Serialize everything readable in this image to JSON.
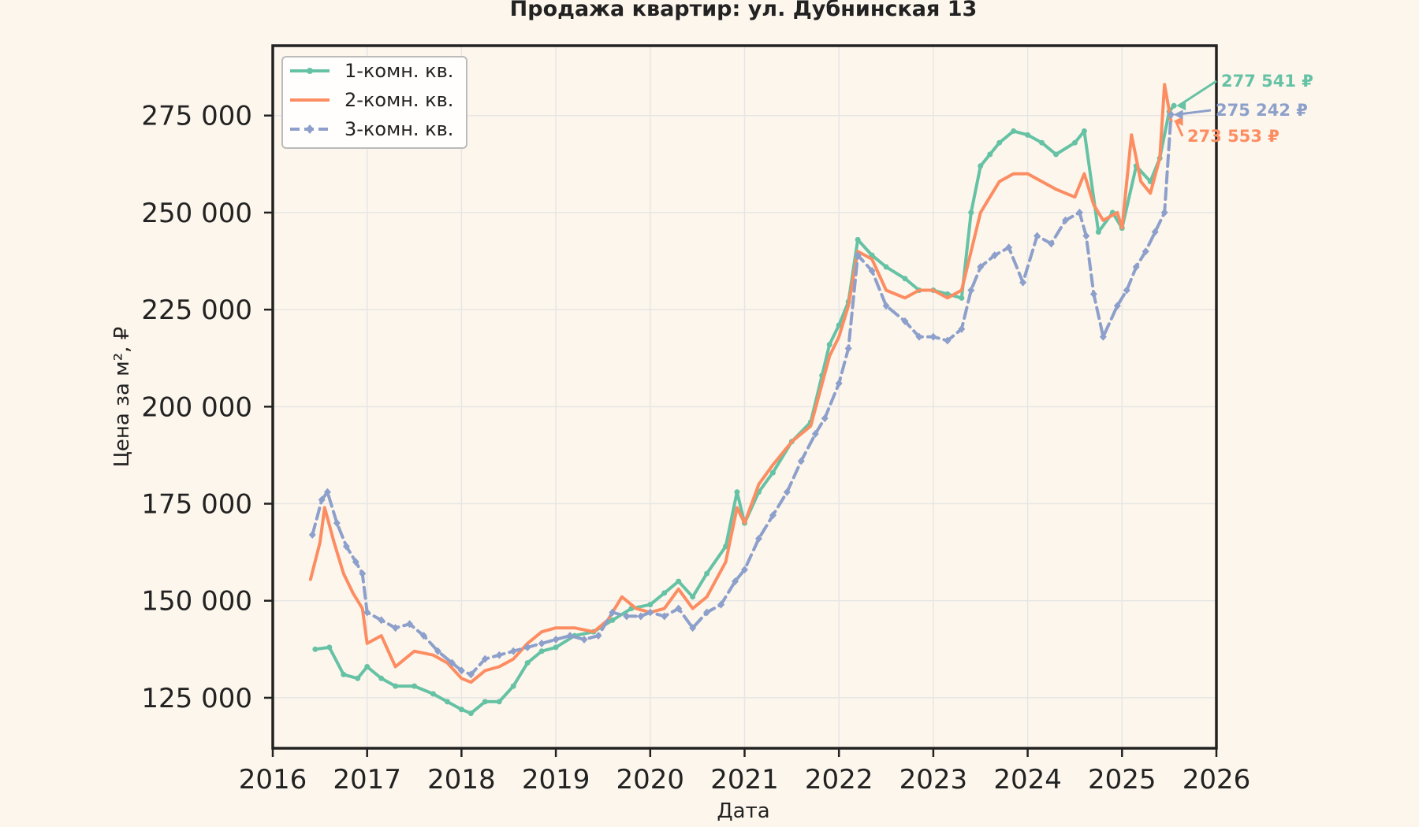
{
  "chart_data": {
    "type": "line",
    "title": "Продажа квартир: ул. Дубнинская 13",
    "xlabel": "Дата",
    "ylabel": "Цена за м², ₽",
    "xlim": [
      2016.0,
      2026.0
    ],
    "ylim": [
      112000,
      293000
    ],
    "x_ticks": [
      2016,
      2017,
      2018,
      2019,
      2020,
      2021,
      2022,
      2023,
      2024,
      2025,
      2026
    ],
    "x_tick_labels": [
      "2016",
      "2017",
      "2018",
      "2019",
      "2020",
      "2021",
      "2022",
      "2023",
      "2024",
      "2025",
      "2026"
    ],
    "y_ticks": [
      125000,
      150000,
      175000,
      200000,
      225000,
      250000,
      275000
    ],
    "y_tick_labels": [
      "125 000",
      "150 000",
      "175 000",
      "200 000",
      "225 000",
      "250 000",
      "275 000"
    ],
    "grid": true,
    "legend_position": "top-left",
    "series": [
      {
        "name": "1-комн. кв.",
        "color": "#66c2a5",
        "style": "solid",
        "marker": "circle",
        "end_label": "277 541 ₽",
        "x": [
          2016.45,
          2016.6,
          2016.75,
          2016.9,
          2017.0,
          2017.15,
          2017.3,
          2017.5,
          2017.7,
          2017.85,
          2018.0,
          2018.1,
          2018.25,
          2018.4,
          2018.55,
          2018.7,
          2018.85,
          2019.0,
          2019.2,
          2019.4,
          2019.6,
          2019.8,
          2020.0,
          2020.15,
          2020.3,
          2020.45,
          2020.6,
          2020.8,
          2020.92,
          2021.0,
          2021.15,
          2021.3,
          2021.5,
          2021.7,
          2021.82,
          2021.9,
          2022.0,
          2022.1,
          2022.2,
          2022.35,
          2022.5,
          2022.7,
          2022.85,
          2023.0,
          2023.15,
          2023.3,
          2023.4,
          2023.5,
          2023.6,
          2023.7,
          2023.85,
          2024.0,
          2024.15,
          2024.3,
          2024.5,
          2024.6,
          2024.75,
          2024.9,
          2025.0,
          2025.15,
          2025.3,
          2025.4,
          2025.5,
          2025.55
        ],
        "y": [
          137500,
          138000,
          131000,
          130000,
          133000,
          130000,
          128000,
          128000,
          126000,
          124000,
          122000,
          121000,
          124000,
          124000,
          128000,
          134000,
          137000,
          138000,
          141000,
          142000,
          145000,
          148000,
          149000,
          152000,
          155000,
          151000,
          157000,
          164000,
          178000,
          170000,
          178000,
          183000,
          191000,
          196000,
          208000,
          216000,
          221000,
          227000,
          243000,
          239000,
          236000,
          233000,
          230000,
          230000,
          229000,
          228000,
          250000,
          262000,
          265000,
          268000,
          271000,
          270000,
          268000,
          265000,
          268000,
          271000,
          245000,
          250000,
          246000,
          262000,
          258000,
          264000,
          276000,
          277541
        ]
      },
      {
        "name": "2-комн. кв.",
        "color": "#fc8d62",
        "style": "solid",
        "marker": "none",
        "end_label": "273 553 ₽",
        "x": [
          2016.4,
          2016.5,
          2016.55,
          2016.65,
          2016.75,
          2016.85,
          2016.95,
          2017.0,
          2017.15,
          2017.3,
          2017.5,
          2017.7,
          2017.85,
          2018.0,
          2018.1,
          2018.25,
          2018.4,
          2018.55,
          2018.7,
          2018.85,
          2019.0,
          2019.2,
          2019.4,
          2019.55,
          2019.7,
          2019.85,
          2020.0,
          2020.15,
          2020.3,
          2020.45,
          2020.6,
          2020.8,
          2020.92,
          2021.0,
          2021.15,
          2021.3,
          2021.5,
          2021.7,
          2021.8,
          2021.9,
          2022.0,
          2022.1,
          2022.2,
          2022.35,
          2022.5,
          2022.7,
          2022.85,
          2023.0,
          2023.15,
          2023.3,
          2023.4,
          2023.5,
          2023.6,
          2023.7,
          2023.85,
          2024.0,
          2024.15,
          2024.3,
          2024.5,
          2024.6,
          2024.7,
          2024.8,
          2024.95,
          2025.0,
          2025.1,
          2025.2,
          2025.3,
          2025.4,
          2025.45,
          2025.52
        ],
        "y": [
          155500,
          165000,
          174000,
          165000,
          157000,
          152000,
          148000,
          139000,
          141000,
          133000,
          137000,
          136000,
          134000,
          130000,
          129000,
          132000,
          133000,
          135000,
          139000,
          142000,
          143000,
          143000,
          142000,
          145000,
          151000,
          148000,
          147000,
          148000,
          153000,
          148000,
          151000,
          160000,
          174000,
          170000,
          180000,
          185000,
          191000,
          195000,
          204000,
          213000,
          218000,
          226000,
          240000,
          238000,
          230000,
          228000,
          230000,
          230000,
          228000,
          230000,
          240000,
          250000,
          254000,
          258000,
          260000,
          260000,
          258000,
          256000,
          254000,
          260000,
          252000,
          248000,
          250000,
          246000,
          270000,
          258000,
          255000,
          264000,
          283000,
          273553
        ]
      },
      {
        "name": "3-комн. кв.",
        "color": "#8da0cb",
        "style": "dashed",
        "marker": "diamond",
        "end_label": "275 242 ₽",
        "x": [
          2016.42,
          2016.52,
          2016.58,
          2016.68,
          2016.78,
          2016.88,
          2016.95,
          2017.0,
          2017.15,
          2017.3,
          2017.45,
          2017.6,
          2017.75,
          2017.9,
          2018.0,
          2018.1,
          2018.25,
          2018.4,
          2018.55,
          2018.7,
          2018.85,
          2019.0,
          2019.15,
          2019.3,
          2019.45,
          2019.6,
          2019.75,
          2019.9,
          2020.0,
          2020.15,
          2020.3,
          2020.45,
          2020.6,
          2020.75,
          2020.9,
          2021.0,
          2021.15,
          2021.3,
          2021.45,
          2021.6,
          2021.75,
          2021.85,
          2022.0,
          2022.1,
          2022.2,
          2022.35,
          2022.5,
          2022.7,
          2022.85,
          2023.0,
          2023.15,
          2023.3,
          2023.4,
          2023.5,
          2023.65,
          2023.8,
          2023.95,
          2024.1,
          2024.25,
          2024.4,
          2024.55,
          2024.62,
          2024.7,
          2024.8,
          2024.95,
          2025.05,
          2025.15,
          2025.25,
          2025.35,
          2025.45,
          2025.52
        ],
        "y": [
          167000,
          176000,
          178000,
          170000,
          164000,
          160000,
          157000,
          147000,
          145000,
          143000,
          144000,
          141000,
          137000,
          134000,
          132000,
          131000,
          135000,
          136000,
          137000,
          138000,
          139000,
          140000,
          141000,
          140000,
          141000,
          147000,
          146000,
          146000,
          147000,
          146000,
          148000,
          143000,
          147000,
          149000,
          155000,
          158000,
          166000,
          172000,
          178000,
          186000,
          193000,
          197000,
          206000,
          215000,
          239000,
          235000,
          226000,
          222000,
          218000,
          218000,
          217000,
          220000,
          230000,
          236000,
          239000,
          241000,
          232000,
          244000,
          242000,
          248000,
          250000,
          244000,
          229000,
          218000,
          226000,
          230000,
          236000,
          240000,
          245000,
          250000,
          275242
        ]
      }
    ]
  }
}
